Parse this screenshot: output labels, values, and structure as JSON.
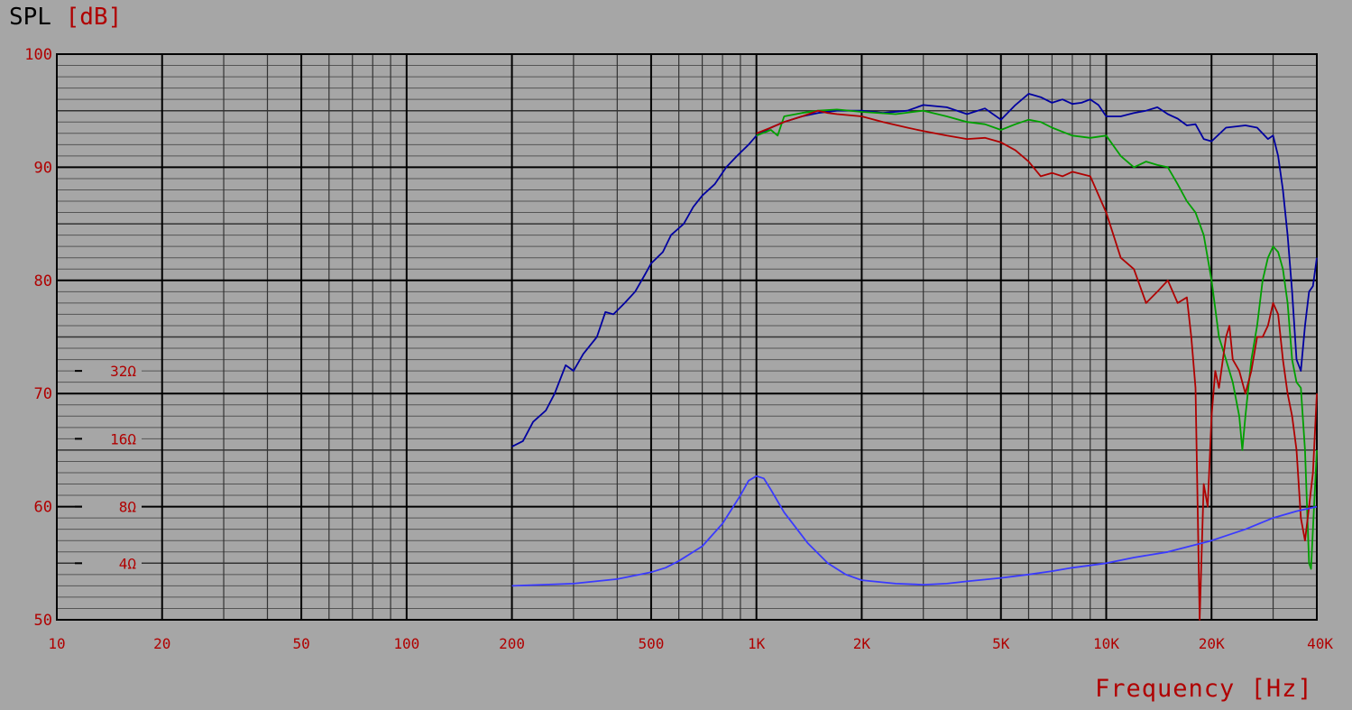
{
  "chart_data": {
    "type": "line",
    "ylabel": "SPL",
    "ylabel_unit": "[dB]",
    "xlabel": "Frequency",
    "xlabel_unit": "[Hz]",
    "x_scale": "log",
    "xlim": [
      10,
      40000
    ],
    "ylim": [
      50,
      100
    ],
    "grid": true,
    "y_ticks": [
      {
        "value": 50,
        "label": "50"
      },
      {
        "value": 60,
        "label": "60"
      },
      {
        "value": 70,
        "label": "70"
      },
      {
        "value": 80,
        "label": "80"
      },
      {
        "value": 90,
        "label": "90"
      },
      {
        "value": 100,
        "label": "100"
      }
    ],
    "x_ticks": [
      {
        "value": 10,
        "label": "10"
      },
      {
        "value": 20,
        "label": "20"
      },
      {
        "value": 50,
        "label": "50"
      },
      {
        "value": 100,
        "label": "100"
      },
      {
        "value": 200,
        "label": "200"
      },
      {
        "value": 500,
        "label": "500"
      },
      {
        "value": 1000,
        "label": "1K"
      },
      {
        "value": 2000,
        "label": "2K"
      },
      {
        "value": 5000,
        "label": "5K"
      },
      {
        "value": 10000,
        "label": "10K"
      },
      {
        "value": 20000,
        "label": "20K"
      },
      {
        "value": 40000,
        "label": "40K"
      }
    ],
    "impedance_markers": [
      {
        "value": 55,
        "label": "4Ω"
      },
      {
        "value": 60,
        "label": "8Ω"
      },
      {
        "value": 66,
        "label": "16Ω"
      },
      {
        "value": 72,
        "label": "32Ω"
      }
    ],
    "colors": {
      "background": "#a6a6a6",
      "grid": "#000000",
      "minor_grid": "#555555",
      "labels": "#b00000"
    },
    "series": [
      {
        "color": "#0000a0",
        "values": [
          [
            200,
            65.3
          ],
          [
            215,
            65.8
          ],
          [
            230,
            67.5
          ],
          [
            250,
            68.5
          ],
          [
            265,
            70
          ],
          [
            285,
            72.5
          ],
          [
            300,
            72
          ],
          [
            320,
            73.5
          ],
          [
            350,
            75
          ],
          [
            370,
            77.2
          ],
          [
            390,
            77
          ],
          [
            420,
            78
          ],
          [
            450,
            79
          ],
          [
            480,
            80.5
          ],
          [
            500,
            81.5
          ],
          [
            540,
            82.5
          ],
          [
            570,
            84
          ],
          [
            620,
            85
          ],
          [
            660,
            86.5
          ],
          [
            700,
            87.5
          ],
          [
            760,
            88.5
          ],
          [
            820,
            90
          ],
          [
            880,
            91
          ],
          [
            950,
            92
          ],
          [
            1000,
            92.8
          ],
          [
            1100,
            93.5
          ],
          [
            1200,
            94
          ],
          [
            1350,
            94.5
          ],
          [
            1500,
            94.8
          ],
          [
            1700,
            95
          ],
          [
            2000,
            95
          ],
          [
            2300,
            94.8
          ],
          [
            2700,
            95
          ],
          [
            3000,
            95.5
          ],
          [
            3500,
            95.3
          ],
          [
            4000,
            94.7
          ],
          [
            4500,
            95.2
          ],
          [
            5000,
            94.2
          ],
          [
            5500,
            95.5
          ],
          [
            6000,
            96.5
          ],
          [
            6500,
            96.2
          ],
          [
            7000,
            95.7
          ],
          [
            7500,
            96
          ],
          [
            8000,
            95.6
          ],
          [
            8500,
            95.7
          ],
          [
            9000,
            96
          ],
          [
            9500,
            95.5
          ],
          [
            10000,
            94.5
          ],
          [
            11000,
            94.5
          ],
          [
            12000,
            94.8
          ],
          [
            13000,
            95
          ],
          [
            14000,
            95.3
          ],
          [
            15000,
            94.7
          ],
          [
            16000,
            94.3
          ],
          [
            17000,
            93.7
          ],
          [
            18000,
            93.8
          ],
          [
            19000,
            92.5
          ],
          [
            20000,
            92.3
          ],
          [
            22000,
            93.5
          ],
          [
            25000,
            93.7
          ],
          [
            27000,
            93.5
          ],
          [
            29000,
            92.5
          ],
          [
            30000,
            92.8
          ],
          [
            31000,
            91
          ],
          [
            32000,
            88
          ],
          [
            33000,
            84
          ],
          [
            34000,
            79
          ],
          [
            35000,
            73
          ],
          [
            36000,
            72
          ],
          [
            37000,
            76
          ],
          [
            38000,
            79
          ],
          [
            39000,
            79.5
          ],
          [
            40000,
            82
          ]
        ]
      },
      {
        "color": "#00a000",
        "values": [
          [
            1000,
            92.8
          ],
          [
            1100,
            93.3
          ],
          [
            1150,
            92.8
          ],
          [
            1200,
            94.5
          ],
          [
            1350,
            94.8
          ],
          [
            1500,
            95
          ],
          [
            1700,
            95.1
          ],
          [
            2000,
            94.9
          ],
          [
            2500,
            94.7
          ],
          [
            3000,
            95
          ],
          [
            3500,
            94.5
          ],
          [
            4000,
            94
          ],
          [
            4500,
            93.8
          ],
          [
            5000,
            93.3
          ],
          [
            5500,
            93.8
          ],
          [
            6000,
            94.2
          ],
          [
            6500,
            94
          ],
          [
            7000,
            93.5
          ],
          [
            8000,
            92.8
          ],
          [
            9000,
            92.6
          ],
          [
            10000,
            92.8
          ],
          [
            11000,
            91
          ],
          [
            12000,
            90
          ],
          [
            13000,
            90.5
          ],
          [
            14000,
            90.2
          ],
          [
            15000,
            90
          ],
          [
            16000,
            88.5
          ],
          [
            17000,
            87
          ],
          [
            18000,
            86
          ],
          [
            19000,
            84
          ],
          [
            20000,
            80
          ],
          [
            21000,
            75
          ],
          [
            22000,
            73
          ],
          [
            23000,
            71
          ],
          [
            24000,
            68
          ],
          [
            24500,
            65
          ],
          [
            25000,
            68
          ],
          [
            26000,
            73
          ],
          [
            27000,
            76
          ],
          [
            28000,
            80
          ],
          [
            29000,
            82
          ],
          [
            30000,
            83
          ],
          [
            31000,
            82.5
          ],
          [
            32000,
            81
          ],
          [
            33000,
            78
          ],
          [
            34000,
            73
          ],
          [
            35000,
            71
          ],
          [
            36000,
            70.5
          ],
          [
            37000,
            65
          ],
          [
            38000,
            55
          ],
          [
            38500,
            54.5
          ],
          [
            39000,
            58
          ],
          [
            40000,
            65
          ]
        ]
      },
      {
        "color": "#b00000",
        "values": [
          [
            1000,
            93
          ],
          [
            1100,
            93.5
          ],
          [
            1200,
            94
          ],
          [
            1350,
            94.5
          ],
          [
            1500,
            95
          ],
          [
            1600,
            94.8
          ],
          [
            1700,
            94.7
          ],
          [
            2000,
            94.5
          ],
          [
            2300,
            94
          ],
          [
            2700,
            93.5
          ],
          [
            3000,
            93.2
          ],
          [
            3500,
            92.8
          ],
          [
            4000,
            92.5
          ],
          [
            4500,
            92.6
          ],
          [
            5000,
            92.2
          ],
          [
            5500,
            91.5
          ],
          [
            6000,
            90.5
          ],
          [
            6500,
            89.2
          ],
          [
            7000,
            89.5
          ],
          [
            7500,
            89.2
          ],
          [
            8000,
            89.6
          ],
          [
            9000,
            89.2
          ],
          [
            10000,
            86
          ],
          [
            11000,
            82
          ],
          [
            12000,
            81
          ],
          [
            13000,
            78
          ],
          [
            14000,
            79
          ],
          [
            15000,
            80
          ],
          [
            16000,
            78
          ],
          [
            17000,
            78.5
          ],
          [
            17500,
            75
          ],
          [
            18000,
            70.5
          ],
          [
            18500,
            50
          ],
          [
            19000,
            62
          ],
          [
            19500,
            60
          ],
          [
            20000,
            68
          ],
          [
            20500,
            72
          ],
          [
            21000,
            70.5
          ],
          [
            22000,
            75
          ],
          [
            22500,
            76
          ],
          [
            23000,
            73
          ],
          [
            24000,
            72
          ],
          [
            25000,
            70
          ],
          [
            26000,
            72
          ],
          [
            27000,
            75
          ],
          [
            28000,
            75
          ],
          [
            29000,
            76
          ],
          [
            30000,
            78
          ],
          [
            31000,
            77
          ],
          [
            32000,
            73
          ],
          [
            33000,
            70
          ],
          [
            34000,
            68
          ],
          [
            35000,
            65
          ],
          [
            36000,
            59
          ],
          [
            37000,
            57
          ],
          [
            38000,
            60
          ],
          [
            39000,
            63
          ],
          [
            40000,
            70
          ]
        ]
      },
      {
        "color": "#3a3aff",
        "values": [
          [
            200,
            53
          ],
          [
            300,
            53.2
          ],
          [
            400,
            53.6
          ],
          [
            500,
            54.2
          ],
          [
            550,
            54.6
          ],
          [
            600,
            55.2
          ],
          [
            700,
            56.5
          ],
          [
            800,
            58.5
          ],
          [
            900,
            61
          ],
          [
            950,
            62.3
          ],
          [
            1000,
            62.7
          ],
          [
            1050,
            62.5
          ],
          [
            1100,
            61.5
          ],
          [
            1200,
            59.5
          ],
          [
            1400,
            56.8
          ],
          [
            1600,
            55
          ],
          [
            1800,
            54
          ],
          [
            2000,
            53.5
          ],
          [
            2500,
            53.2
          ],
          [
            3000,
            53.1
          ],
          [
            3500,
            53.2
          ],
          [
            4000,
            53.4
          ],
          [
            5000,
            53.7
          ],
          [
            6000,
            54
          ],
          [
            7000,
            54.3
          ],
          [
            8000,
            54.6
          ],
          [
            10000,
            55
          ],
          [
            12000,
            55.5
          ],
          [
            15000,
            56
          ],
          [
            20000,
            57
          ],
          [
            25000,
            58
          ],
          [
            30000,
            59
          ],
          [
            35000,
            59.6
          ],
          [
            40000,
            60
          ]
        ]
      }
    ]
  }
}
